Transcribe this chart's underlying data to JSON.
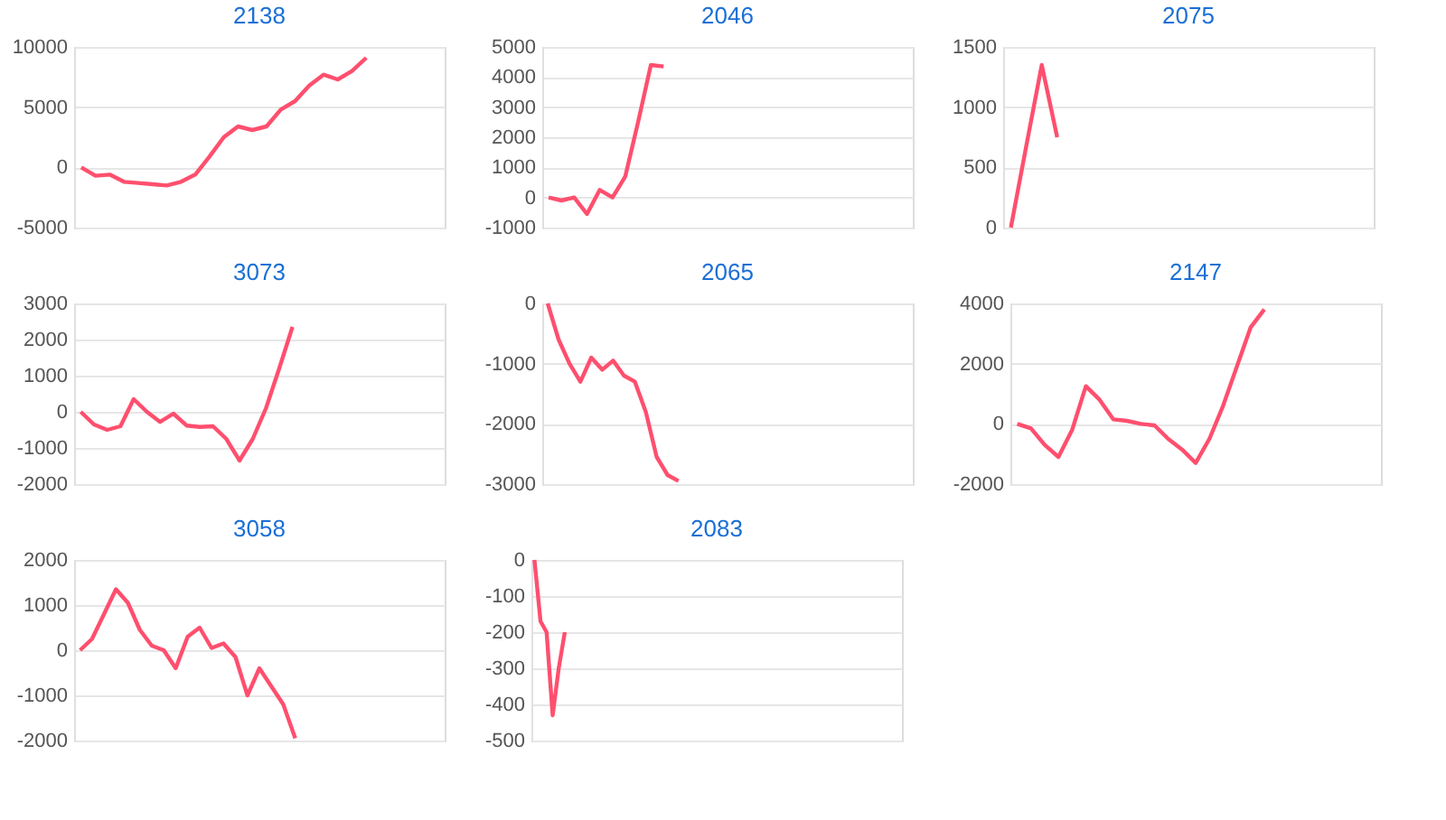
{
  "chart_data": [
    {
      "type": "line",
      "title": "2138",
      "categories": [
        null,
        null,
        null,
        null,
        null,
        null,
        null,
        null,
        null,
        null,
        null,
        null,
        null,
        null,
        null,
        null,
        null,
        null,
        null,
        null,
        null,
        null,
        null,
        null,
        null,
        null
      ],
      "series": [
        {
          "color": "#ff4f6e",
          "values": [
            0,
            -700,
            -600,
            -1200,
            -1300,
            -1400,
            -1500,
            -1200,
            -600,
            900,
            2500,
            3400,
            3100,
            3400,
            4800,
            5500,
            6800,
            7700,
            7300,
            8000,
            9100,
            null,
            null,
            null,
            null,
            null
          ]
        }
      ],
      "ylim": [
        -5000,
        10000
      ],
      "yticks": [
        -5000,
        0,
        5000,
        10000
      ],
      "grid": "y",
      "tick_labels": "y",
      "marker": "none",
      "line_style": "solid"
    },
    {
      "type": "line",
      "title": "2046",
      "categories": [
        null,
        null,
        null,
        null,
        null,
        null,
        null,
        null,
        null,
        null,
        null,
        null,
        null,
        null,
        null,
        null,
        null,
        null,
        null,
        null,
        null,
        null,
        null,
        null,
        null,
        null,
        null,
        null,
        null
      ],
      "series": [
        {
          "color": "#ff4f6e",
          "values": [
            0,
            -100,
            0,
            -550,
            250,
            0,
            700,
            2500,
            4400,
            4350,
            null,
            null,
            null,
            null,
            null,
            null,
            null,
            null,
            null,
            null,
            null,
            null,
            null,
            null,
            null,
            null,
            null,
            null,
            null
          ]
        }
      ],
      "ylim": [
        -1000,
        5000
      ],
      "yticks": [
        -1000,
        0,
        1000,
        2000,
        3000,
        4000,
        5000
      ],
      "grid": "y",
      "tick_labels": "y",
      "marker": "none",
      "line_style": "solid"
    },
    {
      "type": "line",
      "title": "2075",
      "categories": [
        null,
        null,
        null,
        null,
        null,
        null,
        null,
        null,
        null,
        null,
        null,
        null,
        null,
        null,
        null,
        null,
        null,
        null,
        null,
        null,
        null,
        null,
        null,
        null
      ],
      "series": [
        {
          "color": "#ff4f6e",
          "values": [
            0,
            680,
            1350,
            750,
            null,
            null,
            null,
            null,
            null,
            null,
            null,
            null,
            null,
            null,
            null,
            null,
            null,
            null,
            null,
            null,
            null,
            null,
            null,
            null
          ]
        }
      ],
      "ylim": [
        0,
        1500
      ],
      "yticks": [
        0,
        500,
        1000,
        1500
      ],
      "grid": "y",
      "tick_labels": "y",
      "marker": "none",
      "line_style": "solid"
    },
    {
      "type": "line",
      "title": "3073",
      "categories": [
        null,
        null,
        null,
        null,
        null,
        null,
        null,
        null,
        null,
        null,
        null,
        null,
        null,
        null,
        null,
        null,
        null,
        null,
        null,
        null,
        null,
        null,
        null,
        null,
        null,
        null,
        null,
        null
      ],
      "series": [
        {
          "color": "#ff4f6e",
          "values": [
            0,
            -350,
            -500,
            -400,
            350,
            0,
            -280,
            -50,
            -380,
            -420,
            -400,
            -750,
            -1350,
            -750,
            100,
            1200,
            2350,
            null,
            null,
            null,
            null,
            null,
            null,
            null,
            null,
            null,
            null,
            null
          ]
        }
      ],
      "ylim": [
        -2000,
        3000
      ],
      "yticks": [
        -2000,
        -1000,
        0,
        1000,
        2000,
        3000
      ],
      "grid": "y",
      "tick_labels": "y",
      "marker": "none",
      "line_style": "solid"
    },
    {
      "type": "line",
      "title": "2065",
      "categories": [
        null,
        null,
        null,
        null,
        null,
        null,
        null,
        null,
        null,
        null,
        null,
        null,
        null,
        null,
        null,
        null,
        null,
        null,
        null,
        null,
        null,
        null,
        null,
        null,
        null,
        null,
        null,
        null,
        null,
        null,
        null,
        null,
        null,
        null
      ],
      "series": [
        {
          "color": "#ff4f6e",
          "values": [
            0,
            -600,
            -1000,
            -1300,
            -900,
            -1100,
            -950,
            -1200,
            -1300,
            -1800,
            -2550,
            -2850,
            -2950,
            null,
            null,
            null,
            null,
            null,
            null,
            null,
            null,
            null,
            null,
            null,
            null,
            null,
            null,
            null,
            null,
            null,
            null,
            null,
            null,
            null
          ]
        }
      ],
      "ylim": [
        -3000,
        0
      ],
      "yticks": [
        -3000,
        -2000,
        -1000,
        0
      ],
      "grid": "y",
      "tick_labels": "y",
      "marker": "none",
      "line_style": "solid"
    },
    {
      "type": "line",
      "title": "2147",
      "categories": [
        null,
        null,
        null,
        null,
        null,
        null,
        null,
        null,
        null,
        null,
        null,
        null,
        null,
        null,
        null,
        null,
        null,
        null,
        null,
        null,
        null,
        null,
        null,
        null,
        null,
        null,
        null
      ],
      "series": [
        {
          "color": "#ff4f6e",
          "values": [
            0,
            -150,
            -700,
            -1100,
            -200,
            1250,
            800,
            150,
            100,
            0,
            -50,
            -500,
            -850,
            -1300,
            -500,
            600,
            1900,
            3200,
            3800,
            null,
            null,
            null,
            null,
            null,
            null,
            null,
            null
          ]
        }
      ],
      "ylim": [
        -2000,
        4000
      ],
      "yticks": [
        -2000,
        0,
        2000,
        4000
      ],
      "grid": "y",
      "tick_labels": "y",
      "marker": "none",
      "line_style": "solid"
    },
    {
      "type": "line",
      "title": "3058",
      "categories": [
        null,
        null,
        null,
        null,
        null,
        null,
        null,
        null,
        null,
        null,
        null,
        null,
        null,
        null,
        null,
        null,
        null,
        null,
        null,
        null,
        null,
        null,
        null,
        null,
        null,
        null,
        null,
        null,
        null,
        null,
        null
      ],
      "series": [
        {
          "color": "#ff4f6e",
          "values": [
            0,
            250,
            800,
            1350,
            1050,
            450,
            100,
            0,
            -400,
            300,
            500,
            50,
            150,
            -150,
            -1000,
            -400,
            -800,
            -1200,
            -1950,
            null,
            null,
            null,
            null,
            null,
            null,
            null,
            null,
            null,
            null,
            null,
            null
          ]
        }
      ],
      "ylim": [
        -2000,
        2000
      ],
      "yticks": [
        -2000,
        -1000,
        0,
        1000,
        2000
      ],
      "grid": "y",
      "tick_labels": "y",
      "marker": "none",
      "line_style": "solid"
    },
    {
      "type": "line",
      "title": "2083",
      "categories": [
        null,
        null,
        null,
        null,
        null,
        null,
        null,
        null,
        null,
        null,
        null,
        null,
        null,
        null,
        null,
        null,
        null,
        null,
        null,
        null,
        null,
        null,
        null,
        null,
        null,
        null,
        null,
        null,
        null,
        null,
        null,
        null,
        null,
        null,
        null,
        null,
        null,
        null,
        null,
        null,
        null,
        null,
        null,
        null,
        null,
        null,
        null,
        null,
        null,
        null,
        null,
        null,
        null,
        null,
        null,
        null,
        null,
        null,
        null,
        null,
        null
      ],
      "series": [
        {
          "color": "#ff4f6e",
          "values": [
            0,
            -170,
            -200,
            -430,
            -300,
            -200,
            null,
            null,
            null,
            null,
            null,
            null,
            null,
            null,
            null,
            null,
            null,
            null,
            null,
            null,
            null,
            null,
            null,
            null,
            null,
            null,
            null,
            null,
            null,
            null,
            null,
            null,
            null,
            null,
            null,
            null,
            null,
            null,
            null,
            null,
            null,
            null,
            null,
            null,
            null,
            null,
            null,
            null,
            null,
            null,
            null,
            null,
            null,
            null,
            null,
            null,
            null,
            null,
            null,
            null,
            null
          ]
        }
      ],
      "ylim": [
        -500,
        0
      ],
      "yticks": [
        -500,
        -400,
        -300,
        -200,
        -100,
        0
      ],
      "grid": "y",
      "tick_labels": "y",
      "marker": "none",
      "line_style": "solid"
    }
  ]
}
